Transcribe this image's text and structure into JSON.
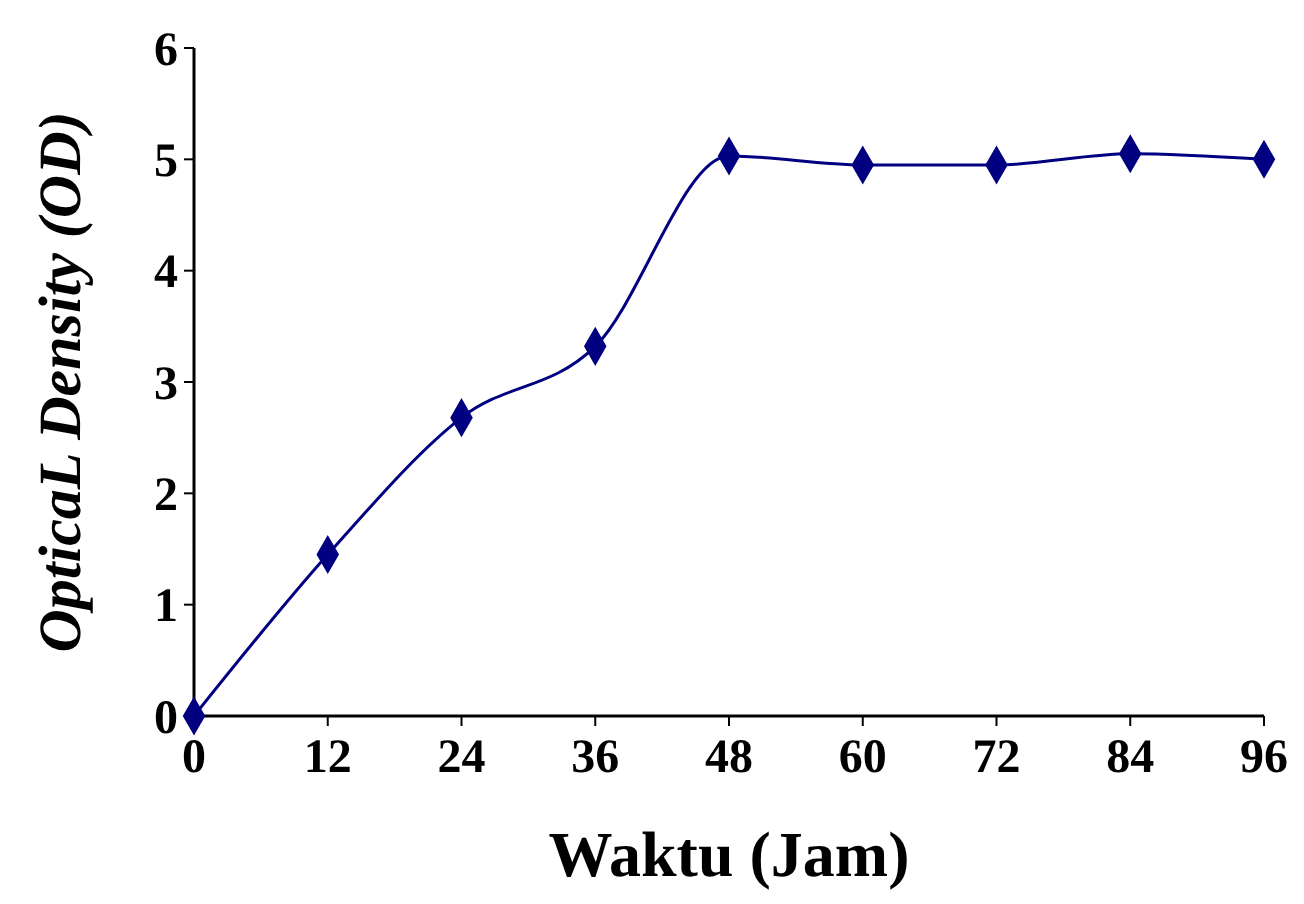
{
  "chart_data": {
    "type": "line",
    "xlabel": "Waktu (Jam)",
    "ylabel": "OpticaL Density (OD)",
    "x": [
      0,
      12,
      24,
      36,
      48,
      60,
      72,
      84,
      96
    ],
    "series": [
      {
        "color": "#000080",
        "values": [
          0,
          1.45,
          2.68,
          3.32,
          5.03,
          4.95,
          4.95,
          5.05,
          5.0
        ]
      }
    ],
    "xlim": [
      0,
      96
    ],
    "xticks": [
      0,
      12,
      24,
      36,
      48,
      60,
      72,
      84,
      96
    ],
    "ylim": [
      0,
      6
    ],
    "yticks": [
      0,
      1,
      2,
      3,
      4,
      5,
      6
    ],
    "grid": false,
    "marker": "diamond",
    "line_style": "solid"
  }
}
